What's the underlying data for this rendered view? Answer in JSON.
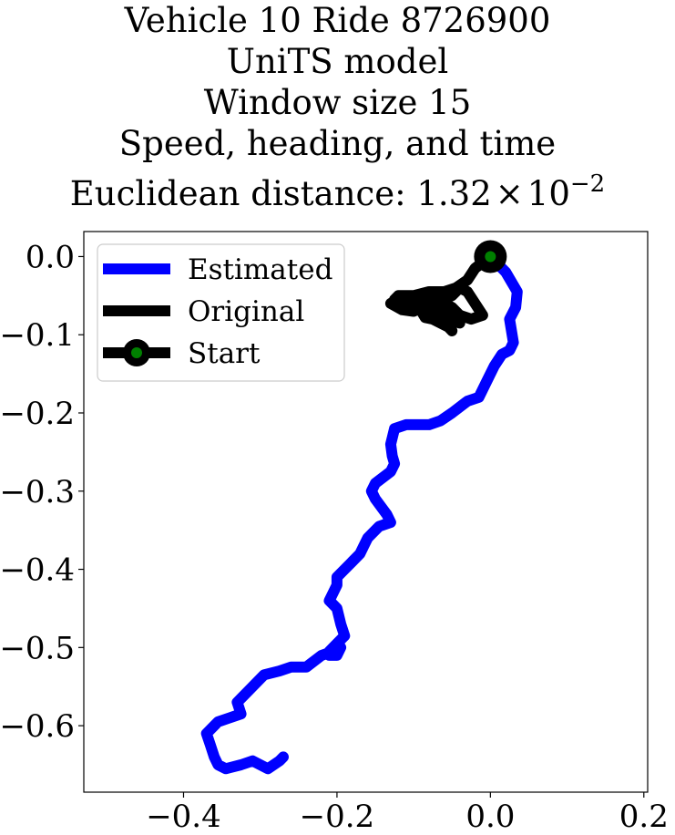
{
  "title": {
    "lines": [
      "Vehicle 10 Ride 8726900",
      "UniTS model",
      "Window size 15",
      "Speed, heading, and time"
    ],
    "distance_prefix": "Euclidean distance: ",
    "distance_mantissa": "1.32",
    "distance_times": "×",
    "distance_base": "10",
    "distance_exponent": "−2"
  },
  "colors": {
    "estimated": "#0000ff",
    "original": "#000000",
    "start_marker": "#008000"
  },
  "chart_data": {
    "type": "line",
    "xlim": [
      -0.53,
      0.205
    ],
    "ylim": [
      -0.685,
      0.032
    ],
    "xticks": [
      -0.4,
      -0.2,
      0.0,
      0.2
    ],
    "xtick_labels": [
      "−0.4",
      "−0.2",
      "0.0",
      "0.2"
    ],
    "yticks": [
      0.0,
      -0.1,
      -0.2,
      -0.3,
      -0.4,
      -0.5,
      -0.6
    ],
    "ytick_labels": [
      "0.0",
      "−0.1",
      "−0.2",
      "−0.3",
      "−0.4",
      "−0.5",
      "−0.6"
    ],
    "grid": false,
    "legend_position": "top-left",
    "legend": [
      "Estimated",
      "Original",
      "Start"
    ],
    "series": [
      {
        "name": "Estimated",
        "color": "#0000ff",
        "x": [
          0.0,
          0.02,
          0.035,
          0.033,
          0.025,
          0.03,
          0.025,
          0.015,
          0.005,
          -0.005,
          -0.015,
          -0.03,
          -0.05,
          -0.065,
          -0.08,
          -0.095,
          -0.11,
          -0.125,
          -0.13,
          -0.128,
          -0.125,
          -0.13,
          -0.15,
          -0.155,
          -0.15,
          -0.135,
          -0.13,
          -0.145,
          -0.16,
          -0.165,
          -0.17,
          -0.18,
          -0.2,
          -0.2,
          -0.21,
          -0.2,
          -0.195,
          -0.19,
          -0.2,
          -0.21,
          -0.21,
          -0.2,
          -0.195,
          -0.205,
          -0.22,
          -0.24,
          -0.26,
          -0.275,
          -0.295,
          -0.31,
          -0.33,
          -0.325,
          -0.34,
          -0.355,
          -0.36,
          -0.37,
          -0.365,
          -0.36,
          -0.355,
          -0.345,
          -0.325,
          -0.31,
          -0.29,
          -0.275,
          -0.27
        ],
        "y": [
          0.0,
          -0.02,
          -0.045,
          -0.065,
          -0.08,
          -0.11,
          -0.12,
          -0.125,
          -0.14,
          -0.16,
          -0.18,
          -0.185,
          -0.2,
          -0.21,
          -0.215,
          -0.215,
          -0.215,
          -0.22,
          -0.24,
          -0.255,
          -0.265,
          -0.275,
          -0.29,
          -0.3,
          -0.31,
          -0.33,
          -0.34,
          -0.345,
          -0.36,
          -0.37,
          -0.38,
          -0.39,
          -0.41,
          -0.42,
          -0.44,
          -0.45,
          -0.47,
          -0.485,
          -0.495,
          -0.505,
          -0.51,
          -0.51,
          -0.5,
          -0.505,
          -0.51,
          -0.525,
          -0.525,
          -0.53,
          -0.535,
          -0.55,
          -0.57,
          -0.585,
          -0.59,
          -0.595,
          -0.6,
          -0.61,
          -0.625,
          -0.64,
          -0.65,
          -0.655,
          -0.65,
          -0.645,
          -0.655,
          -0.645,
          -0.64
        ]
      },
      {
        "name": "Original",
        "color": "#000000",
        "x": [
          0.0,
          -0.02,
          -0.03,
          -0.045,
          -0.06,
          -0.08,
          -0.1,
          -0.12,
          -0.125,
          -0.11,
          -0.09,
          -0.07,
          -0.05,
          -0.04,
          -0.03,
          -0.02,
          -0.01,
          -0.025,
          -0.04,
          -0.05,
          -0.06,
          -0.075,
          -0.09,
          -0.1,
          -0.115,
          -0.13,
          -0.12,
          -0.1,
          -0.085,
          -0.07,
          -0.06,
          -0.055,
          -0.05,
          -0.055,
          -0.065,
          -0.075,
          -0.085,
          -0.09,
          -0.08,
          -0.065,
          -0.05,
          -0.04,
          -0.05,
          -0.06
        ],
        "y": [
          0.0,
          -0.015,
          -0.03,
          -0.04,
          -0.045,
          -0.045,
          -0.05,
          -0.05,
          -0.055,
          -0.06,
          -0.065,
          -0.058,
          -0.05,
          -0.04,
          -0.045,
          -0.06,
          -0.075,
          -0.08,
          -0.075,
          -0.065,
          -0.06,
          -0.06,
          -0.065,
          -0.07,
          -0.068,
          -0.06,
          -0.055,
          -0.05,
          -0.055,
          -0.06,
          -0.07,
          -0.08,
          -0.095,
          -0.09,
          -0.085,
          -0.08,
          -0.078,
          -0.07,
          -0.065,
          -0.07,
          -0.078,
          -0.085,
          -0.08,
          -0.075
        ]
      }
    ],
    "start": {
      "x": 0.0,
      "y": 0.0
    }
  }
}
